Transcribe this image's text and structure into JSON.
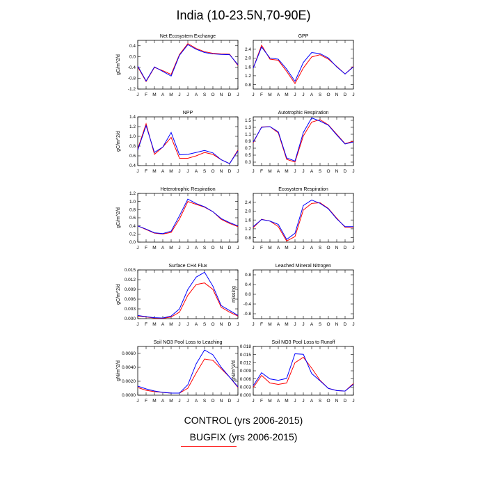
{
  "title": "India (10-23.5N,70-90E)",
  "legend": {
    "control_label": "CONTROL (yrs 2006-2015)",
    "bugfix_label": "BUGFIX (yrs 2006-2015)",
    "control_color": "#0000ff",
    "bugfix_color": "#ff0000"
  },
  "chart_data": [
    {
      "type": "line",
      "title": "Net Ecosystem Exchange",
      "ylabel": "gC/m^2/d",
      "categories": [
        "J",
        "F",
        "M",
        "A",
        "M",
        "J",
        "J",
        "A",
        "S",
        "O",
        "N",
        "D",
        "J"
      ],
      "ylim": [
        -1.2,
        0.6
      ],
      "yticks": [
        0.4,
        0.0,
        -0.4,
        -0.8,
        -1.2
      ],
      "yticklabels": [
        "0.4",
        "0.0",
        "-0.4",
        "-0.8",
        "-1.2"
      ],
      "series": [
        {
          "name": "CONTROL",
          "color": "#0000ff",
          "values": [
            -0.35,
            -0.9,
            -0.38,
            -0.55,
            -0.72,
            0.05,
            0.44,
            0.27,
            0.15,
            0.1,
            0.08,
            0.07,
            -0.3
          ]
        },
        {
          "name": "BUGFIX",
          "color": "#ff0000",
          "values": [
            -0.38,
            -0.92,
            -0.4,
            -0.52,
            -0.66,
            0.08,
            0.48,
            0.3,
            0.18,
            0.12,
            0.1,
            0.09,
            -0.33
          ]
        }
      ]
    },
    {
      "type": "line",
      "title": "GPP",
      "ylabel": "",
      "categories": [
        "J",
        "F",
        "M",
        "A",
        "M",
        "J",
        "J",
        "A",
        "S",
        "O",
        "N",
        "D",
        "J"
      ],
      "ylim": [
        0.6,
        2.8
      ],
      "yticks": [
        0.8,
        1.2,
        1.6,
        2.0,
        2.4
      ],
      "yticklabels": [
        "0.8",
        "1.2",
        "1.6",
        "2.0",
        "2.4"
      ],
      "series": [
        {
          "name": "CONTROL",
          "color": "#0000ff",
          "values": [
            1.55,
            2.5,
            2.0,
            1.95,
            1.5,
            0.95,
            1.8,
            2.25,
            2.2,
            2.0,
            1.6,
            1.28,
            1.6
          ]
        },
        {
          "name": "BUGFIX",
          "color": "#ff0000",
          "values": [
            1.55,
            2.58,
            1.95,
            1.9,
            1.4,
            0.85,
            1.55,
            2.05,
            2.15,
            1.95,
            1.62,
            1.28,
            1.62
          ]
        }
      ]
    },
    {
      "type": "line",
      "title": "NPP",
      "ylabel": "gC/m^2/d",
      "categories": [
        "J",
        "F",
        "M",
        "A",
        "M",
        "J",
        "J",
        "A",
        "S",
        "O",
        "N",
        "D",
        "J"
      ],
      "ylim": [
        0.4,
        1.4
      ],
      "yticks": [
        0.4,
        0.6,
        0.8,
        1.0,
        1.2,
        1.4
      ],
      "yticklabels": [
        "0.4",
        "0.6",
        "0.8",
        "1.0",
        "1.2",
        "1.4"
      ],
      "series": [
        {
          "name": "CONTROL",
          "color": "#0000ff",
          "values": [
            0.72,
            1.22,
            0.67,
            0.78,
            1.08,
            0.62,
            0.63,
            0.67,
            0.71,
            0.66,
            0.52,
            0.44,
            0.7
          ]
        },
        {
          "name": "BUGFIX",
          "color": "#ff0000",
          "values": [
            0.74,
            1.26,
            0.63,
            0.78,
            0.98,
            0.55,
            0.55,
            0.6,
            0.67,
            0.63,
            0.52,
            0.44,
            0.72
          ]
        }
      ]
    },
    {
      "type": "line",
      "title": "Autotrophic Respiration",
      "ylabel": "",
      "categories": [
        "J",
        "F",
        "M",
        "A",
        "M",
        "J",
        "J",
        "A",
        "S",
        "O",
        "N",
        "D",
        "J"
      ],
      "ylim": [
        0.2,
        1.6
      ],
      "yticks": [
        0.3,
        0.5,
        0.7,
        0.9,
        1.1,
        1.3,
        1.5
      ],
      "yticklabels": [
        "0.3",
        "0.5",
        "0.7",
        "0.9",
        "1.1",
        "1.3",
        "1.5"
      ],
      "series": [
        {
          "name": "CONTROL",
          "color": "#0000ff",
          "values": [
            0.88,
            1.3,
            1.32,
            1.17,
            0.42,
            0.33,
            1.15,
            1.57,
            1.48,
            1.36,
            1.08,
            0.82,
            0.88
          ]
        },
        {
          "name": "BUGFIX",
          "color": "#ff0000",
          "values": [
            0.86,
            1.31,
            1.32,
            1.14,
            0.38,
            0.3,
            1.05,
            1.45,
            1.52,
            1.37,
            1.1,
            0.83,
            0.9
          ]
        }
      ]
    },
    {
      "type": "line",
      "title": "Heterotrophic Respiration",
      "ylabel": "gC/m^2/d",
      "categories": [
        "J",
        "F",
        "M",
        "A",
        "M",
        "J",
        "J",
        "A",
        "S",
        "O",
        "N",
        "D",
        "J"
      ],
      "ylim": [
        0.0,
        1.2
      ],
      "yticks": [
        0.0,
        0.2,
        0.4,
        0.6,
        0.8,
        1.0,
        1.2
      ],
      "yticklabels": [
        "0.0",
        "0.2",
        "0.4",
        "0.6",
        "0.8",
        "1.0",
        "1.2"
      ],
      "series": [
        {
          "name": "CONTROL",
          "color": "#0000ff",
          "values": [
            0.4,
            0.32,
            0.23,
            0.21,
            0.27,
            0.65,
            1.06,
            0.95,
            0.87,
            0.75,
            0.58,
            0.48,
            0.4
          ]
        },
        {
          "name": "BUGFIX",
          "color": "#ff0000",
          "values": [
            0.4,
            0.31,
            0.22,
            0.2,
            0.24,
            0.57,
            1.0,
            0.93,
            0.86,
            0.75,
            0.56,
            0.46,
            0.38
          ]
        }
      ]
    },
    {
      "type": "line",
      "title": "Ecosystem Respiration",
      "ylabel": "",
      "categories": [
        "J",
        "F",
        "M",
        "A",
        "M",
        "J",
        "J",
        "A",
        "S",
        "O",
        "N",
        "D",
        "J"
      ],
      "ylim": [
        0.6,
        2.8
      ],
      "yticks": [
        0.8,
        1.2,
        1.6,
        2.0,
        2.4
      ],
      "yticklabels": [
        "0.8",
        "1.2",
        "1.6",
        "2.0",
        "2.4"
      ],
      "series": [
        {
          "name": "CONTROL",
          "color": "#0000ff",
          "values": [
            1.3,
            1.62,
            1.55,
            1.4,
            0.72,
            1.0,
            2.25,
            2.5,
            2.35,
            2.1,
            1.65,
            1.3,
            1.3
          ]
        },
        {
          "name": "BUGFIX",
          "color": "#ff0000",
          "values": [
            1.25,
            1.63,
            1.55,
            1.3,
            0.65,
            0.85,
            2.05,
            2.35,
            2.38,
            2.12,
            1.68,
            1.27,
            1.27
          ]
        }
      ]
    },
    {
      "type": "line",
      "title": "Surface CH4 Flux",
      "ylabel": "gC/m^2/d",
      "categories": [
        "J",
        "F",
        "M",
        "A",
        "M",
        "J",
        "J",
        "A",
        "S",
        "O",
        "N",
        "D",
        "J"
      ],
      "ylim": [
        0.0,
        0.015
      ],
      "yticks": [
        0.0,
        0.003,
        0.006,
        0.009,
        0.012,
        0.015
      ],
      "yticklabels": [
        "0.000",
        "0.003",
        "0.006",
        "0.009",
        "0.012",
        "0.015"
      ],
      "series": [
        {
          "name": "CONTROL",
          "color": "#0000ff",
          "values": [
            0.001,
            0.0006,
            0.0003,
            0.0002,
            0.0008,
            0.003,
            0.009,
            0.0128,
            0.0143,
            0.01,
            0.004,
            0.0025,
            0.001
          ]
        },
        {
          "name": "BUGFIX",
          "color": "#ff0000",
          "values": [
            0.0008,
            0.0005,
            0.0002,
            0.0001,
            0.0005,
            0.002,
            0.0072,
            0.0105,
            0.011,
            0.009,
            0.0035,
            0.002,
            0.0008
          ]
        }
      ]
    },
    {
      "type": "line",
      "title": "Leached Mineral Nitrogen",
      "ylabel": "missing",
      "categories": [
        "J",
        "F",
        "M",
        "A",
        "M",
        "J",
        "J",
        "A",
        "S",
        "O",
        "N",
        "D",
        "J"
      ],
      "ylim": [
        -1.0,
        1.0
      ],
      "yticks": [
        -0.8,
        -0.4,
        0.0,
        0.4,
        0.8
      ],
      "yticklabels": [
        "-0.8",
        "-0.4",
        "0.0",
        "0.4",
        "0.8"
      ],
      "series": []
    },
    {
      "type": "line",
      "title": "Soil NO3 Pool Loss to Leaching",
      "ylabel": "gN/m^2/d",
      "categories": [
        "J",
        "F",
        "M",
        "A",
        "M",
        "J",
        "J",
        "A",
        "S",
        "O",
        "N",
        "D",
        "J"
      ],
      "ylim": [
        0.0,
        0.007
      ],
      "yticks": [
        0.0,
        0.002,
        0.004,
        0.006
      ],
      "yticklabels": [
        "0.0000",
        "0.0020",
        "0.0040",
        "0.0060"
      ],
      "series": [
        {
          "name": "CONTROL",
          "color": "#0000ff",
          "values": [
            0.0013,
            0.0009,
            0.0006,
            0.0004,
            0.0003,
            0.0003,
            0.0015,
            0.0045,
            0.0065,
            0.0058,
            0.004,
            0.0026,
            0.0012
          ]
        },
        {
          "name": "BUGFIX",
          "color": "#ff0000",
          "values": [
            0.0011,
            0.0007,
            0.0005,
            0.0004,
            0.0003,
            0.0003,
            0.001,
            0.0032,
            0.0052,
            0.005,
            0.0038,
            0.0026,
            0.0011
          ]
        }
      ]
    },
    {
      "type": "line",
      "title": "Soil NO3 Pool Loss to Runoff",
      "ylabel": "gN/m^2/d",
      "categories": [
        "J",
        "F",
        "M",
        "A",
        "M",
        "J",
        "J",
        "A",
        "S",
        "O",
        "N",
        "D",
        "J"
      ],
      "ylim": [
        0.0,
        0.018
      ],
      "yticks": [
        0.0,
        0.003,
        0.006,
        0.009,
        0.012,
        0.015,
        0.018
      ],
      "yticklabels": [
        "0.000",
        "0.003",
        "0.006",
        "0.009",
        "0.012",
        "0.015",
        "0.018"
      ],
      "series": [
        {
          "name": "CONTROL",
          "color": "#0000ff",
          "values": [
            0.0035,
            0.0083,
            0.006,
            0.0055,
            0.0062,
            0.0153,
            0.0151,
            0.008,
            0.0053,
            0.0025,
            0.0017,
            0.0015,
            0.004
          ]
        },
        {
          "name": "BUGFIX",
          "color": "#ff0000",
          "values": [
            0.0028,
            0.0073,
            0.0045,
            0.004,
            0.0045,
            0.012,
            0.014,
            0.01,
            0.0055,
            0.0025,
            0.0017,
            0.0015,
            0.0043
          ]
        }
      ]
    }
  ]
}
